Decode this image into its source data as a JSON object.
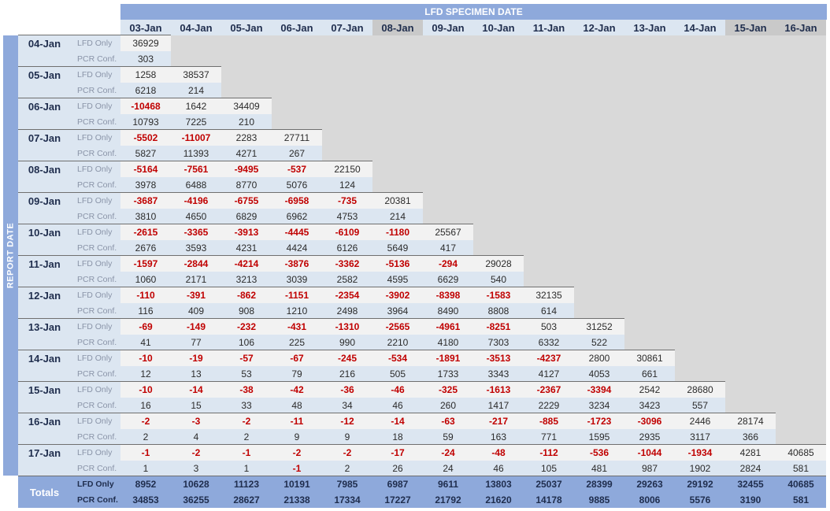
{
  "header": {
    "title": "LFD SPECIMEN DATE",
    "row_axis_label": "REPORT DATE"
  },
  "specimen_dates": [
    "03-Jan",
    "04-Jan",
    "05-Jan",
    "06-Jan",
    "07-Jan",
    "08-Jan",
    "09-Jan",
    "10-Jan",
    "11-Jan",
    "12-Jan",
    "13-Jan",
    "14-Jan",
    "15-Jan",
    "16-Jan"
  ],
  "shaded_specimen_dates": [
    "08-Jan",
    "15-Jan",
    "16-Jan"
  ],
  "row_types": {
    "lfd": "LFD Only",
    "pcr": "PCR Conf."
  },
  "report_rows": [
    {
      "date": "04-Jan",
      "lfd": [
        "36929"
      ],
      "pcr": [
        "303"
      ]
    },
    {
      "date": "05-Jan",
      "lfd": [
        "1258",
        "38537"
      ],
      "pcr": [
        "6218",
        "214"
      ]
    },
    {
      "date": "06-Jan",
      "lfd": [
        "-10468",
        "1642",
        "34409"
      ],
      "pcr": [
        "10793",
        "7225",
        "210"
      ]
    },
    {
      "date": "07-Jan",
      "lfd": [
        "-5502",
        "-11007",
        "2283",
        "27711"
      ],
      "pcr": [
        "5827",
        "11393",
        "4271",
        "267"
      ]
    },
    {
      "date": "08-Jan",
      "lfd": [
        "-5164",
        "-7561",
        "-9495",
        "-537",
        "22150"
      ],
      "pcr": [
        "3978",
        "6488",
        "8770",
        "5076",
        "124"
      ]
    },
    {
      "date": "09-Jan",
      "lfd": [
        "-3687",
        "-4196",
        "-6755",
        "-6958",
        "-735",
        "20381"
      ],
      "pcr": [
        "3810",
        "4650",
        "6829",
        "6962",
        "4753",
        "214"
      ]
    },
    {
      "date": "10-Jan",
      "lfd": [
        "-2615",
        "-3365",
        "-3913",
        "-4445",
        "-6109",
        "-1180",
        "25567"
      ],
      "pcr": [
        "2676",
        "3593",
        "4231",
        "4424",
        "6126",
        "5649",
        "417"
      ]
    },
    {
      "date": "11-Jan",
      "lfd": [
        "-1597",
        "-2844",
        "-4214",
        "-3876",
        "-3362",
        "-5136",
        "-294",
        "29028"
      ],
      "pcr": [
        "1060",
        "2171",
        "3213",
        "3039",
        "2582",
        "4595",
        "6629",
        "540"
      ]
    },
    {
      "date": "12-Jan",
      "lfd": [
        "-110",
        "-391",
        "-862",
        "-1151",
        "-2354",
        "-3902",
        "-8398",
        "-1583",
        "32135"
      ],
      "pcr": [
        "116",
        "409",
        "908",
        "1210",
        "2498",
        "3964",
        "8490",
        "8808",
        "614"
      ]
    },
    {
      "date": "13-Jan",
      "lfd": [
        "-69",
        "-149",
        "-232",
        "-431",
        "-1310",
        "-2565",
        "-4961",
        "-8251",
        "503",
        "31252"
      ],
      "pcr": [
        "41",
        "77",
        "106",
        "225",
        "990",
        "2210",
        "4180",
        "7303",
        "6332",
        "522"
      ]
    },
    {
      "date": "14-Jan",
      "lfd": [
        "-10",
        "-19",
        "-57",
        "-67",
        "-245",
        "-534",
        "-1891",
        "-3513",
        "-4237",
        "2800",
        "30861"
      ],
      "pcr": [
        "12",
        "13",
        "53",
        "79",
        "216",
        "505",
        "1733",
        "3343",
        "4127",
        "4053",
        "661"
      ]
    },
    {
      "date": "15-Jan",
      "lfd": [
        "-10",
        "-14",
        "-38",
        "-42",
        "-36",
        "-46",
        "-325",
        "-1613",
        "-2367",
        "-3394",
        "2542",
        "28680"
      ],
      "pcr": [
        "16",
        "15",
        "33",
        "48",
        "34",
        "46",
        "260",
        "1417",
        "2229",
        "3234",
        "3423",
        "557"
      ]
    },
    {
      "date": "16-Jan",
      "lfd": [
        "-2",
        "-3",
        "-2",
        "-11",
        "-12",
        "-14",
        "-63",
        "-217",
        "-885",
        "-1723",
        "-3096",
        "2446",
        "28174"
      ],
      "pcr": [
        "2",
        "4",
        "2",
        "9",
        "9",
        "18",
        "59",
        "163",
        "771",
        "1595",
        "2935",
        "3117",
        "366"
      ]
    },
    {
      "date": "17-Jan",
      "lfd": [
        "-1",
        "-2",
        "-1",
        "-2",
        "-2",
        "-17",
        "-24",
        "-48",
        "-112",
        "-536",
        "-1044",
        "-1934",
        "4281",
        "40685"
      ],
      "pcr": [
        "1",
        "3",
        "1",
        "-1",
        "2",
        "26",
        "24",
        "46",
        "105",
        "481",
        "987",
        "1902",
        "2824",
        "581"
      ]
    }
  ],
  "totals": {
    "label": "Totals",
    "lfd": [
      "8952",
      "10628",
      "11123",
      "10191",
      "7985",
      "6987",
      "9611",
      "13803",
      "25037",
      "28399",
      "29263",
      "29192",
      "32455",
      "40685"
    ],
    "pcr": [
      "34853",
      "36255",
      "28627",
      "21338",
      "17334",
      "17227",
      "21792",
      "21620",
      "14178",
      "9885",
      "8006",
      "5576",
      "3190",
      "581"
    ]
  },
  "colors": {
    "title_band": "#8ea9db",
    "header_light": "#dce6f1",
    "header_shaded": "#c9c9c9",
    "negative_text": "#c00000",
    "blank_fill": "#d9d9d9"
  }
}
